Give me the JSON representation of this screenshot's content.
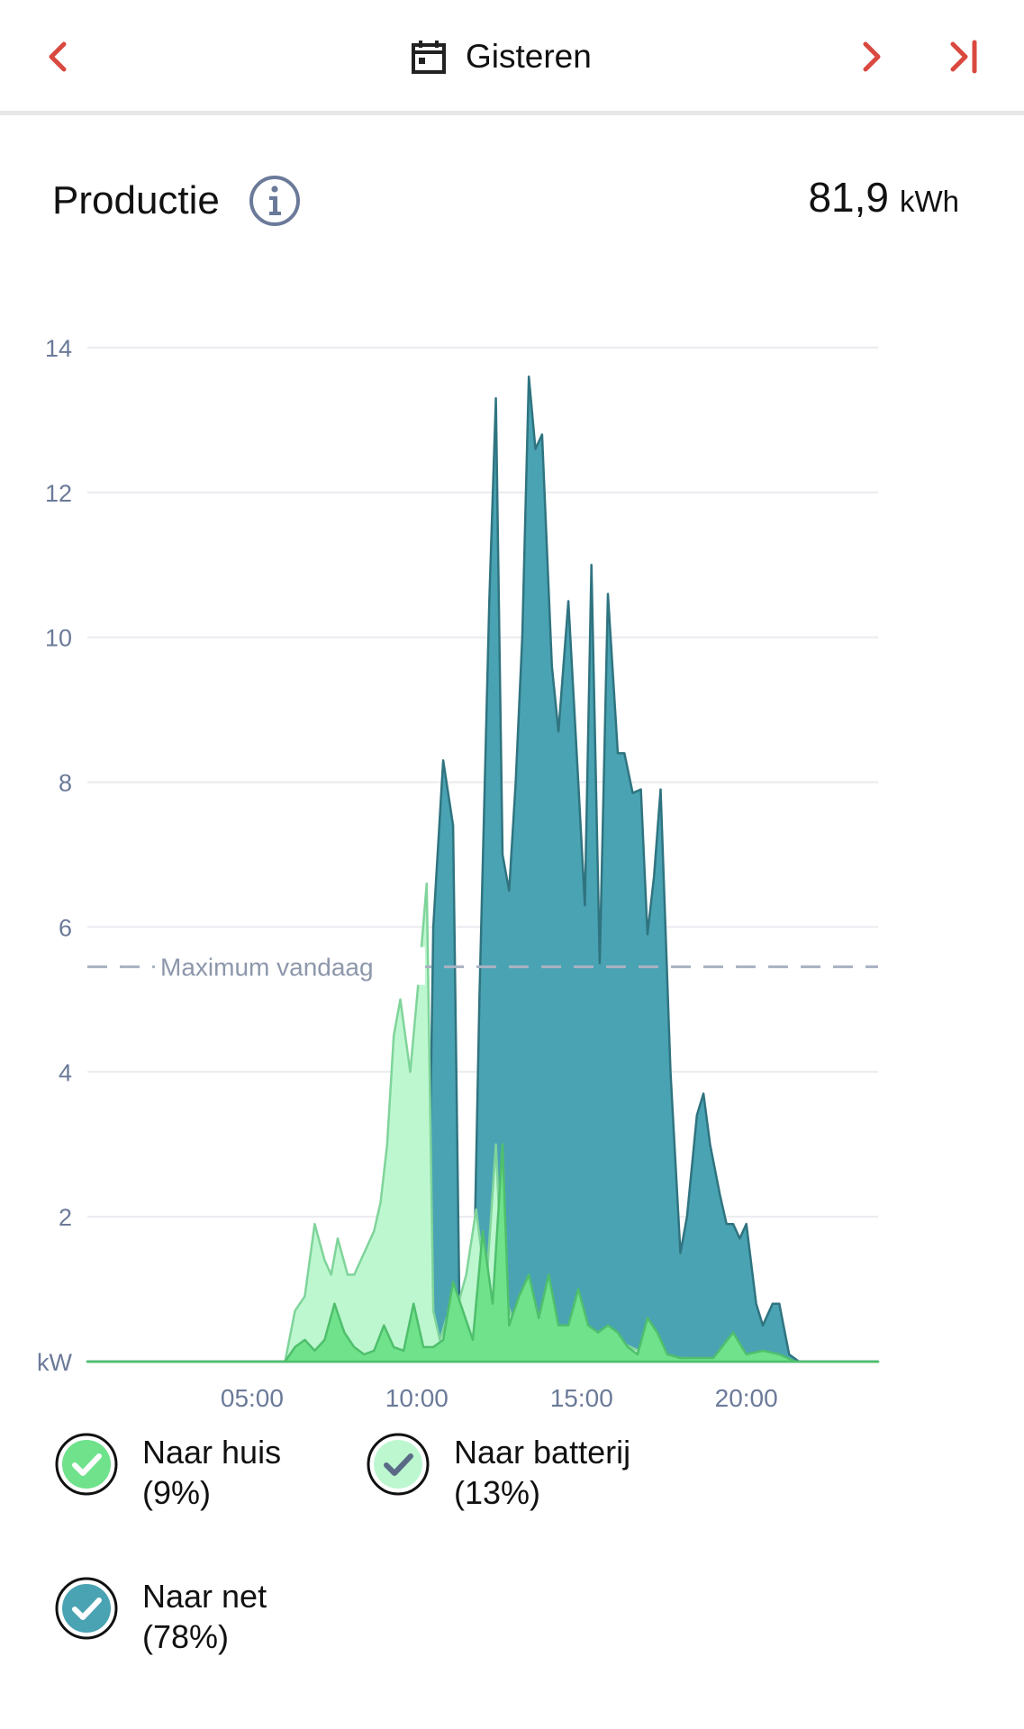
{
  "nav": {
    "title": "Gisteren"
  },
  "header": {
    "title": "Productie",
    "total_value": "81,9",
    "total_unit": "kWh"
  },
  "colors": {
    "accent": "#d9493f",
    "net": "#4aa3b3",
    "net_stroke": "#2f7480",
    "batterij": "#bdf7d0",
    "batterij_stroke": "#7fd49a",
    "huis": "#6fe28b",
    "huis_stroke": "#4fbf6c"
  },
  "chart_data": {
    "type": "area",
    "ylabel": "kW",
    "ylim": [
      0,
      14
    ],
    "yticks": [
      2,
      4,
      6,
      8,
      10,
      12,
      14
    ],
    "xlim": [
      0,
      24
    ],
    "xticks": [
      {
        "x": 5,
        "label": "05:00"
      },
      {
        "x": 10,
        "label": "10:00"
      },
      {
        "x": 15,
        "label": "15:00"
      },
      {
        "x": 20,
        "label": "20:00"
      }
    ],
    "reference_line": {
      "value": 5.45,
      "label": "Maximum vandaag"
    },
    "series": [
      {
        "name": "Naar net",
        "key": "net",
        "points": [
          [
            0,
            0
          ],
          [
            10.3,
            0
          ],
          [
            10.5,
            6.0
          ],
          [
            10.8,
            8.3
          ],
          [
            11.1,
            7.4
          ],
          [
            11.3,
            0.5
          ],
          [
            11.5,
            0.3
          ],
          [
            11.7,
            0.4
          ],
          [
            11.9,
            5.0
          ],
          [
            12.2,
            10.5
          ],
          [
            12.4,
            13.3
          ],
          [
            12.6,
            7.0
          ],
          [
            12.8,
            6.5
          ],
          [
            13.0,
            8.0
          ],
          [
            13.2,
            10.0
          ],
          [
            13.4,
            13.6
          ],
          [
            13.6,
            12.6
          ],
          [
            13.8,
            12.8
          ],
          [
            14.1,
            9.6
          ],
          [
            14.3,
            8.7
          ],
          [
            14.6,
            10.5
          ],
          [
            14.9,
            8.0
          ],
          [
            15.1,
            6.3
          ],
          [
            15.3,
            11.0
          ],
          [
            15.55,
            5.5
          ],
          [
            15.8,
            10.6
          ],
          [
            16.1,
            8.4
          ],
          [
            16.3,
            8.4
          ],
          [
            16.55,
            7.85
          ],
          [
            16.8,
            7.9
          ],
          [
            17.0,
            5.9
          ],
          [
            17.2,
            6.7
          ],
          [
            17.4,
            7.9
          ],
          [
            17.7,
            4.0
          ],
          [
            18.0,
            1.5
          ],
          [
            18.2,
            2.0
          ],
          [
            18.5,
            3.4
          ],
          [
            18.7,
            3.7
          ],
          [
            18.9,
            3.0
          ],
          [
            19.2,
            2.3
          ],
          [
            19.4,
            1.9
          ],
          [
            19.6,
            1.9
          ],
          [
            19.8,
            1.7
          ],
          [
            20.0,
            1.9
          ],
          [
            20.3,
            0.8
          ],
          [
            20.5,
            0.5
          ],
          [
            20.8,
            0.8
          ],
          [
            21.0,
            0.8
          ],
          [
            21.3,
            0.1
          ],
          [
            21.6,
            0
          ],
          [
            24,
            0
          ]
        ]
      },
      {
        "name": "Naar batterij",
        "key": "batterij",
        "points": [
          [
            0,
            0
          ],
          [
            6.0,
            0
          ],
          [
            6.3,
            0.7
          ],
          [
            6.6,
            0.9
          ],
          [
            6.9,
            1.9
          ],
          [
            7.2,
            1.4
          ],
          [
            7.4,
            1.2
          ],
          [
            7.6,
            1.7
          ],
          [
            7.9,
            1.2
          ],
          [
            8.1,
            1.2
          ],
          [
            8.4,
            1.5
          ],
          [
            8.7,
            1.8
          ],
          [
            8.9,
            2.2
          ],
          [
            9.1,
            3.0
          ],
          [
            9.3,
            4.5
          ],
          [
            9.5,
            5.0
          ],
          [
            9.8,
            4.0
          ],
          [
            10.1,
            5.5
          ],
          [
            10.3,
            6.6
          ],
          [
            10.5,
            0.7
          ],
          [
            10.7,
            0.3
          ],
          [
            10.9,
            0.6
          ],
          [
            11.2,
            0.7
          ],
          [
            11.5,
            1.2
          ],
          [
            11.8,
            2.1
          ],
          [
            12.1,
            1.0
          ],
          [
            12.4,
            3.0
          ],
          [
            12.6,
            1.0
          ],
          [
            12.9,
            0.6
          ],
          [
            13.2,
            0.5
          ],
          [
            13.5,
            0.7
          ],
          [
            13.8,
            0.5
          ],
          [
            14.1,
            0.5
          ],
          [
            14.4,
            0.4
          ],
          [
            15.0,
            0.4
          ],
          [
            16.0,
            0.3
          ],
          [
            17.0,
            0.1
          ],
          [
            18.0,
            0.05
          ],
          [
            21.0,
            0
          ],
          [
            24,
            0
          ]
        ]
      },
      {
        "name": "Naar huis",
        "key": "huis",
        "points": [
          [
            0,
            0
          ],
          [
            6.0,
            0
          ],
          [
            6.3,
            0.2
          ],
          [
            6.6,
            0.3
          ],
          [
            6.9,
            0.15
          ],
          [
            7.2,
            0.3
          ],
          [
            7.5,
            0.8
          ],
          [
            7.8,
            0.4
          ],
          [
            8.1,
            0.2
          ],
          [
            8.4,
            0.1
          ],
          [
            8.7,
            0.15
          ],
          [
            9.0,
            0.5
          ],
          [
            9.3,
            0.2
          ],
          [
            9.6,
            0.15
          ],
          [
            9.9,
            0.8
          ],
          [
            10.2,
            0.2
          ],
          [
            10.5,
            0.2
          ],
          [
            10.8,
            0.3
          ],
          [
            11.1,
            1.1
          ],
          [
            11.4,
            0.7
          ],
          [
            11.7,
            0.3
          ],
          [
            12.0,
            1.8
          ],
          [
            12.3,
            0.8
          ],
          [
            12.6,
            3.0
          ],
          [
            12.8,
            0.5
          ],
          [
            13.1,
            0.9
          ],
          [
            13.4,
            1.2
          ],
          [
            13.7,
            0.6
          ],
          [
            14.0,
            1.2
          ],
          [
            14.3,
            0.5
          ],
          [
            14.6,
            0.5
          ],
          [
            14.9,
            1.0
          ],
          [
            15.2,
            0.5
          ],
          [
            15.5,
            0.4
          ],
          [
            15.8,
            0.5
          ],
          [
            16.1,
            0.4
          ],
          [
            16.4,
            0.2
          ],
          [
            16.7,
            0.1
          ],
          [
            17.0,
            0.6
          ],
          [
            17.3,
            0.4
          ],
          [
            17.6,
            0.1
          ],
          [
            18.0,
            0.05
          ],
          [
            18.5,
            0.05
          ],
          [
            19.0,
            0.05
          ],
          [
            19.6,
            0.4
          ],
          [
            20.0,
            0.1
          ],
          [
            20.5,
            0.15
          ],
          [
            21.0,
            0.1
          ],
          [
            21.5,
            0
          ],
          [
            24,
            0
          ]
        ]
      }
    ]
  },
  "legend": [
    {
      "name": "Naar huis",
      "pct": "(9%)",
      "key": "huis"
    },
    {
      "name": "Naar batterij",
      "pct": "(13%)",
      "key": "batterij"
    },
    {
      "name": "Naar net",
      "pct": "(78%)",
      "key": "net"
    }
  ],
  "icons": {
    "back": "chevron-left-icon",
    "forward": "chevron-right-icon",
    "last": "skip-to-end-icon",
    "calendar": "calendar-icon",
    "info": "info-icon",
    "check": "checkmark-icon"
  }
}
